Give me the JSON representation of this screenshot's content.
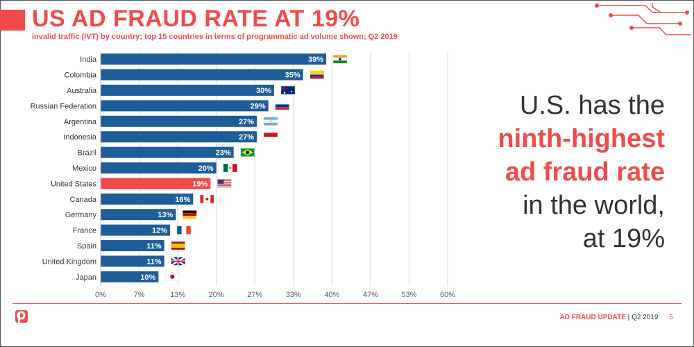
{
  "header": {
    "title": "US AD FRAUD RATE AT 19%",
    "subtitle": "invalid traffic (IVT) by country; top 15 countries in terms of programmatic ad volume shown; Q2 2019"
  },
  "headline": {
    "line1": "U.S. has the",
    "line2": "ninth-highest",
    "line3": "ad fraud rate",
    "line4": "in the world,",
    "line5": "at 19%"
  },
  "footer": {
    "label": "AD FRAUD UPDATE",
    "separator": " | ",
    "period": "Q2 2019",
    "page": "5"
  },
  "colors": {
    "accent": "#ef4b4b",
    "bar": "#1f5d99",
    "highlight": "#ef4b4b"
  },
  "chart_data": {
    "type": "bar",
    "orientation": "horizontal",
    "categories": [
      "India",
      "Colombia",
      "Australia",
      "Russian Federation",
      "Argentina",
      "Indonesia",
      "Brazil",
      "Mexico",
      "United States",
      "Canada",
      "Germany",
      "France",
      "Spain",
      "United Kingdom",
      "Japan"
    ],
    "values": [
      39,
      35,
      30,
      29,
      27,
      27,
      23,
      20,
      19,
      16,
      13,
      12,
      11,
      11,
      10
    ],
    "value_labels": [
      "39%",
      "35%",
      "30%",
      "29%",
      "27%",
      "27%",
      "23%",
      "20%",
      "19%",
      "16%",
      "13%",
      "12%",
      "11%",
      "11%",
      "10%"
    ],
    "highlight_category": "United States",
    "flag_icons": [
      "india-flag-icon",
      "colombia-flag-icon",
      "australia-flag-icon",
      "russia-flag-icon",
      "argentina-flag-icon",
      "indonesia-flag-icon",
      "brazil-flag-icon",
      "mexico-flag-icon",
      "usa-flag-icon",
      "canada-flag-icon",
      "germany-flag-icon",
      "france-flag-icon",
      "spain-flag-icon",
      "uk-flag-icon",
      "japan-flag-icon"
    ],
    "x_ticks": [
      "0%",
      "7%",
      "13%",
      "20%",
      "27%",
      "33%",
      "40%",
      "47%",
      "53%",
      "60%"
    ],
    "xlim": [
      0,
      60
    ],
    "grid": "vertical",
    "legend": "none"
  }
}
